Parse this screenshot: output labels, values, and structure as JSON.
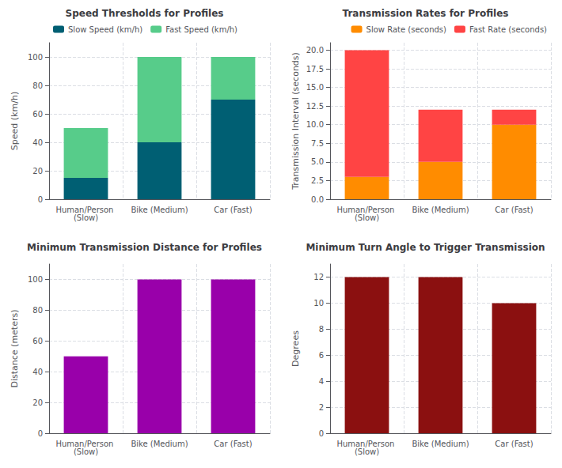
{
  "chart_data": [
    {
      "type": "bar",
      "title": "Speed Thresholds for Profiles",
      "ylabel": "Speed (km/h)",
      "categories": [
        "Human/Person (Slow)",
        "Bike (Medium)",
        "Car (Fast)"
      ],
      "series": [
        {
          "name": "Slow Speed (km/h)",
          "color": "#005f73",
          "values": [
            15,
            40,
            70
          ]
        },
        {
          "name": "Fast Speed (km/h)",
          "color": "#57cc8a",
          "values": [
            35,
            60,
            30
          ]
        }
      ],
      "stacked": true,
      "ylim": [
        0,
        110
      ],
      "yticks": [
        0,
        20,
        40,
        60,
        80,
        100
      ],
      "grid": true,
      "legend": "upper left"
    },
    {
      "type": "bar",
      "title": "Transmission Rates for Profiles",
      "ylabel": "Transmission Interval (seconds)",
      "categories": [
        "Human/Person (Slow)",
        "Bike (Medium)",
        "Car (Fast)"
      ],
      "series": [
        {
          "name": "Slow Rate (seconds)",
          "color": "#FF8C00",
          "values": [
            3,
            5,
            10
          ]
        },
        {
          "name": "Fast Rate (seconds)",
          "color": "#FF4444",
          "values": [
            17,
            7,
            2
          ]
        }
      ],
      "stacked": true,
      "ylim": [
        0,
        21
      ],
      "yticks": [
        {
          "value": 0,
          "label": "0.0"
        },
        2.5,
        {
          "value": 5,
          "label": "5.0"
        },
        7.5,
        {
          "value": 10,
          "label": "10.0"
        },
        12.5,
        {
          "value": 15,
          "label": "15.0"
        },
        17.5,
        {
          "value": 20,
          "label": "20.0"
        }
      ],
      "grid": true,
      "legend": "upper right"
    },
    {
      "type": "bar",
      "title": "Minimum Transmission Distance for Profiles",
      "ylabel": "Distance (meters)",
      "categories": [
        "Human/Person (Slow)",
        "Bike (Medium)",
        "Car (Fast)"
      ],
      "values": [
        50,
        100,
        100
      ],
      "color": "#9900aa",
      "ylim": [
        0,
        110
      ],
      "yticks": [
        0,
        20,
        40,
        60,
        80,
        100
      ],
      "grid": true
    },
    {
      "type": "bar",
      "title": "Minimum Turn Angle to Trigger Transmission",
      "ylabel": "Degrees",
      "categories": [
        "Human/Person (Slow)",
        "Bike (Medium)",
        "Car (Fast)"
      ],
      "values": [
        12,
        12,
        10
      ],
      "color": "#8B1010",
      "ylim": [
        0,
        13
      ],
      "yticks": [
        0,
        2,
        4,
        6,
        8,
        10,
        12
      ],
      "grid": true
    }
  ]
}
